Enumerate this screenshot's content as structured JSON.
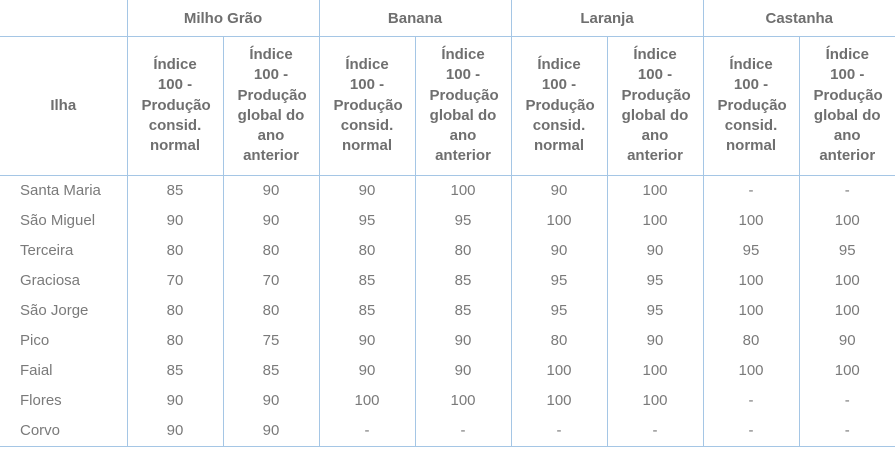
{
  "colors": {
    "border": "#a5c6e5",
    "header_text": "#6f6f6f",
    "data_text": "#7a7a7a",
    "background": "#ffffff"
  },
  "table": {
    "row_header_label": "Ilha",
    "groups": [
      {
        "label": "Milho Grão"
      },
      {
        "label": "Banana"
      },
      {
        "label": "Laranja"
      },
      {
        "label": "Castanha"
      }
    ],
    "subheaders": [
      "Índice 100 - Produção consid. normal",
      "Índice 100 - Produção global do ano anterior"
    ],
    "rows": [
      {
        "ilha": "Santa Maria",
        "values": [
          "85",
          "90",
          "90",
          "100",
          "90",
          "100",
          "-",
          "-"
        ]
      },
      {
        "ilha": "São Miguel",
        "values": [
          "90",
          "90",
          "95",
          "95",
          "100",
          "100",
          "100",
          "100"
        ]
      },
      {
        "ilha": "Terceira",
        "values": [
          "80",
          "80",
          "80",
          "80",
          "90",
          "90",
          "95",
          "95"
        ]
      },
      {
        "ilha": "Graciosa",
        "values": [
          "70",
          "70",
          "85",
          "85",
          "95",
          "95",
          "100",
          "100"
        ]
      },
      {
        "ilha": "São Jorge",
        "values": [
          "80",
          "80",
          "85",
          "85",
          "95",
          "95",
          "100",
          "100"
        ]
      },
      {
        "ilha": "Pico",
        "values": [
          "80",
          "75",
          "90",
          "90",
          "80",
          "90",
          "80",
          "90"
        ]
      },
      {
        "ilha": "Faial",
        "values": [
          "85",
          "85",
          "90",
          "90",
          "100",
          "100",
          "100",
          "100"
        ]
      },
      {
        "ilha": "Flores",
        "values": [
          "90",
          "90",
          "100",
          "100",
          "100",
          "100",
          "-",
          "-"
        ]
      },
      {
        "ilha": "Corvo",
        "values": [
          "90",
          "90",
          "-",
          "-",
          "-",
          "-",
          "-",
          "-"
        ]
      }
    ]
  }
}
